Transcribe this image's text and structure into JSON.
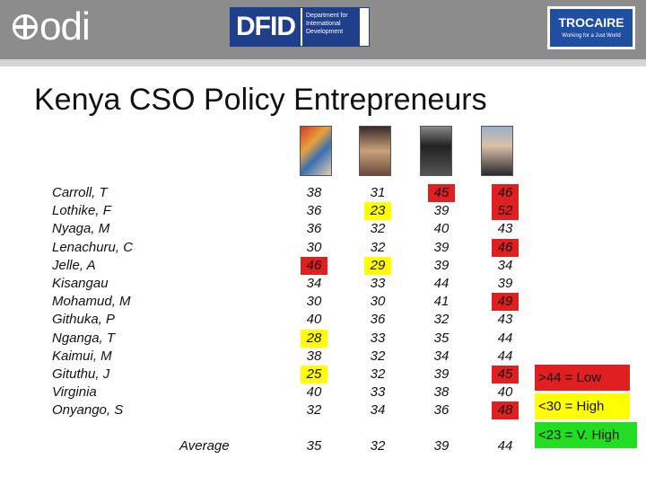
{
  "header": {
    "odi_logo": "odi",
    "dfid_logo": "DFID",
    "dfid_subtitle": [
      "Department for",
      "International",
      "Development"
    ],
    "trocaire_logo": "TROCAIRE",
    "trocaire_tagline": "Working for a Just World"
  },
  "title": "Kenya CSO Policy Entrepreneurs",
  "people": [
    "Carroll, T",
    "Lothike, F",
    "Nyaga, M",
    "Lenachuru, C",
    "Jelle, A",
    "Kisangau",
    "Mohamud, M",
    "Githuka, P",
    "Nganga, T",
    "Kaimui, M",
    "Gituthu, J",
    "Virginia",
    "Onyango, S"
  ],
  "columns": [
    {
      "icon": "painting-icon",
      "values": [
        "38",
        "36",
        "36",
        "30",
        "46",
        "34",
        "30",
        "40",
        "28",
        "38",
        "25",
        "40",
        "32"
      ],
      "average": "35"
    },
    {
      "icon": "crowd-photo-icon",
      "values": [
        "31",
        "23",
        "32",
        "32",
        "29",
        "33",
        "30",
        "36",
        "33",
        "32",
        "32",
        "33",
        "34"
      ],
      "average": "32"
    },
    {
      "icon": "group-photo-icon",
      "values": [
        "45",
        "39",
        "40",
        "39",
        "39",
        "44",
        "41",
        "32",
        "35",
        "34",
        "39",
        "38",
        "36"
      ],
      "average": "39"
    },
    {
      "icon": "portrait-icon",
      "values": [
        "46",
        "52",
        "43",
        "46",
        "34",
        "39",
        "49",
        "43",
        "44",
        "44",
        "45",
        "40",
        "48"
      ],
      "average": "44"
    }
  ],
  "average_label": "Average",
  "legend": {
    "low": ">44 = Low",
    "high": "<30 = High",
    "very_high": "<23 = V. High"
  },
  "colors": {
    "low": "#e02020",
    "high": "#ffff00",
    "very_high": "#22dd22",
    "header_bar": "#8c8c8c"
  }
}
